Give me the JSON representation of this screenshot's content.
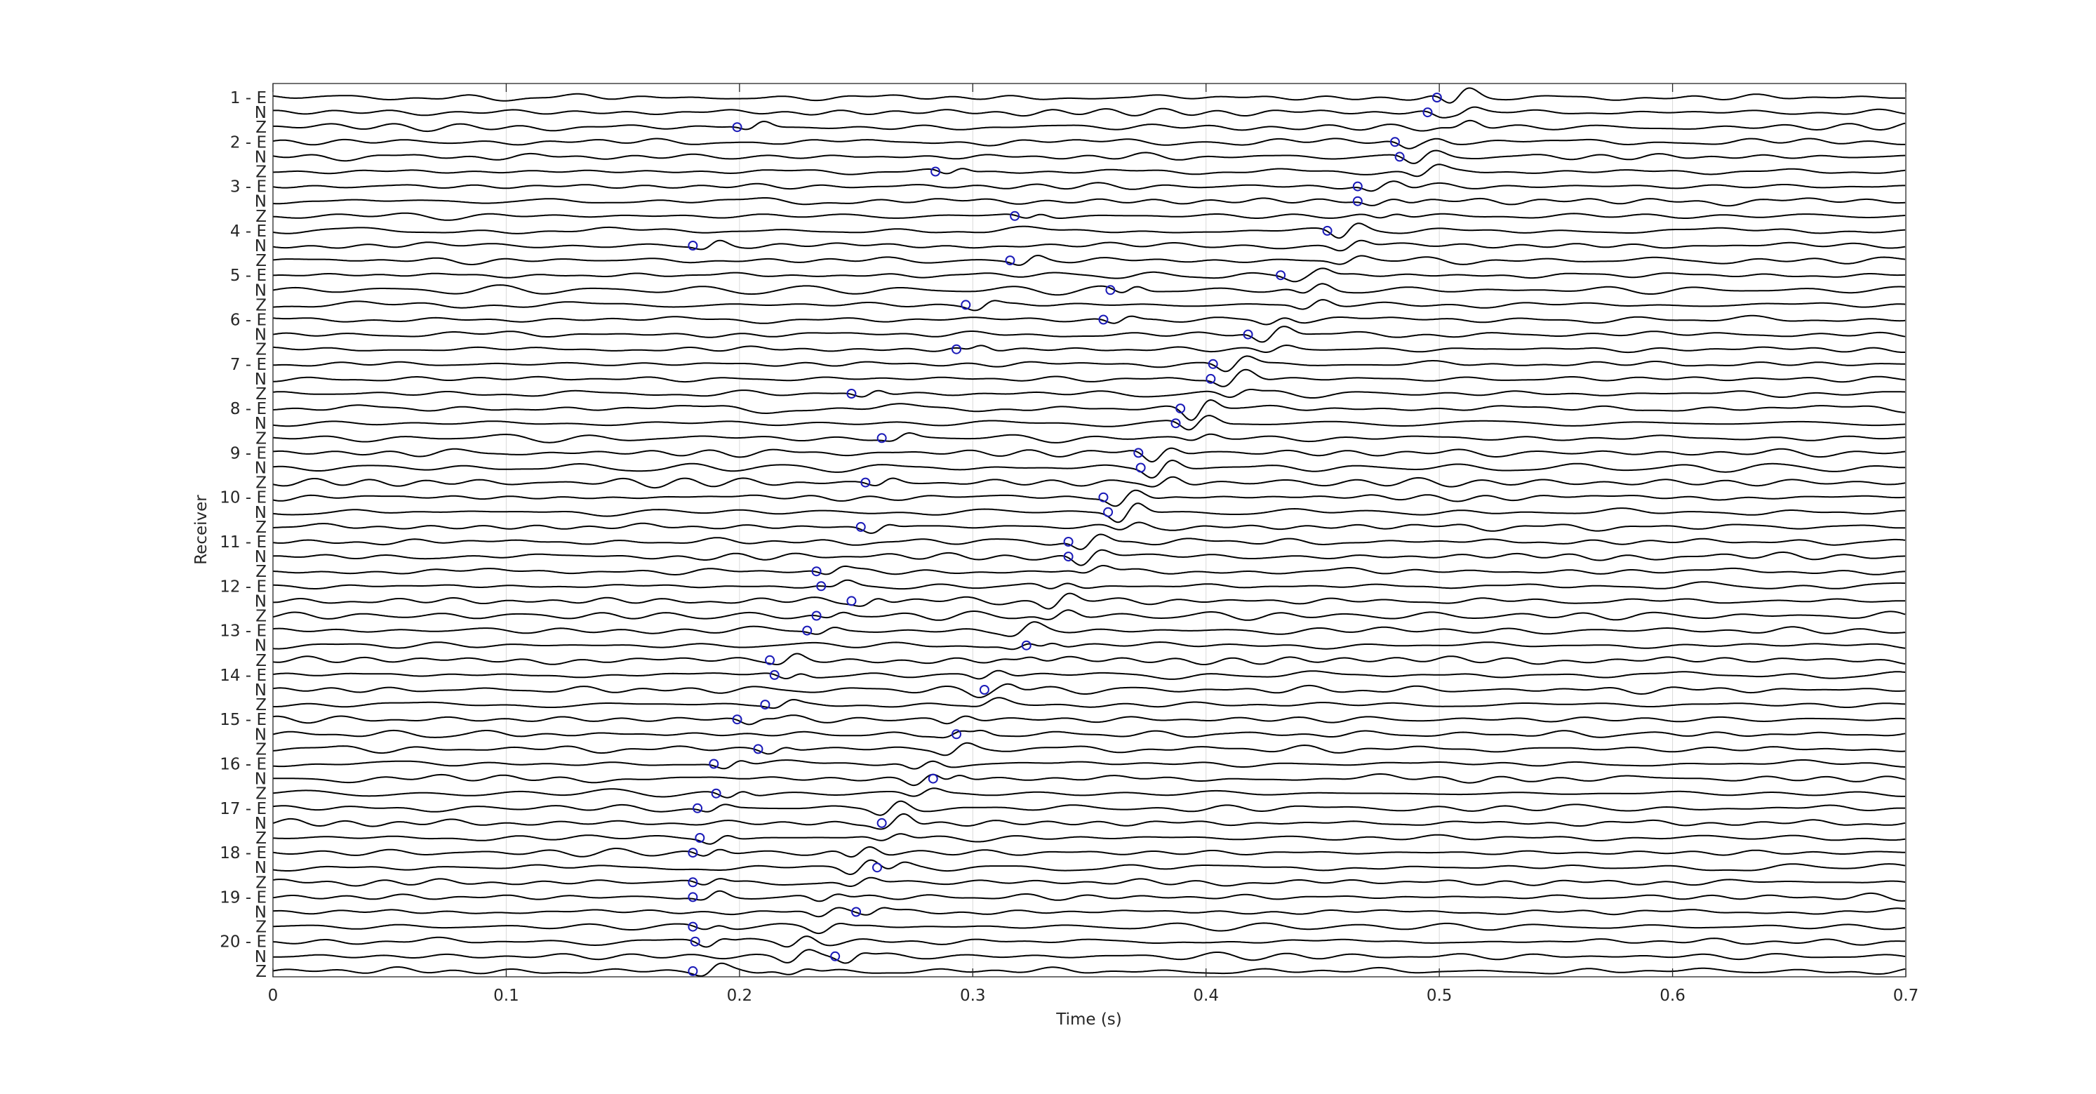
{
  "chart_data": {
    "type": "line",
    "title": "",
    "xlabel": "Time (s)",
    "ylabel": "Receiver",
    "xlim": [
      0,
      0.7
    ],
    "x_ticks": [
      0,
      0.1,
      0.2,
      0.3,
      0.4,
      0.5,
      0.6,
      0.7
    ],
    "x_tick_labels": [
      "0",
      "0.1",
      "0.2",
      "0.3",
      "0.4",
      "0.5",
      "0.6",
      "0.7"
    ],
    "grid": true,
    "components": [
      "E",
      "N",
      "Z"
    ],
    "trace_color": "#000000",
    "pick_color": "#1a1ab8",
    "receivers": [
      {
        "label": "1 - E",
        "picks": {
          "E": 0.499,
          "N": 0.495,
          "Z": 0.199
        },
        "arrival": 0.51
      },
      {
        "label": "2 - E",
        "picks": {
          "E": 0.481,
          "N": 0.483,
          "Z": 0.284
        },
        "arrival": 0.495
      },
      {
        "label": "3 - E",
        "picks": {
          "E": 0.465,
          "N": 0.465,
          "Z": 0.318
        },
        "arrival": 0.478
      },
      {
        "label": "4 - E",
        "picks": {
          "E": 0.452,
          "N": 0.18,
          "Z": 0.316
        },
        "arrival": 0.462
      },
      {
        "label": "5 - E",
        "picks": {
          "E": 0.432,
          "N": 0.359,
          "Z": 0.297
        },
        "arrival": 0.446
      },
      {
        "label": "6 - E",
        "picks": {
          "E": 0.356,
          "N": 0.418,
          "Z": 0.293
        },
        "arrival": 0.43
      },
      {
        "label": "7 - E",
        "picks": {
          "E": 0.403,
          "N": 0.402,
          "Z": 0.248
        },
        "arrival": 0.414
      },
      {
        "label": "8 - E",
        "picks": {
          "E": 0.389,
          "N": 0.387,
          "Z": 0.261
        },
        "arrival": 0.398
      },
      {
        "label": "9 - E",
        "picks": {
          "E": 0.371,
          "N": 0.372,
          "Z": 0.254
        },
        "arrival": 0.382
      },
      {
        "label": "10 - E",
        "picks": {
          "E": 0.356,
          "N": 0.358,
          "Z": 0.252
        },
        "arrival": 0.367
      },
      {
        "label": "11 - E",
        "picks": {
          "E": 0.341,
          "N": 0.341,
          "Z": 0.233
        },
        "arrival": 0.352
      },
      {
        "label": "12 - E",
        "picks": {
          "E": 0.235,
          "N": 0.248,
          "Z": 0.233
        },
        "arrival": 0.337
      },
      {
        "label": "13 - E",
        "picks": {
          "E": 0.229,
          "N": 0.323,
          "Z": 0.213
        },
        "arrival": 0.322
      },
      {
        "label": "14 - E",
        "picks": {
          "E": 0.215,
          "N": 0.305,
          "Z": 0.211
        },
        "arrival": 0.307
      },
      {
        "label": "15 - E",
        "picks": {
          "E": 0.199,
          "N": 0.293,
          "Z": 0.208
        },
        "arrival": 0.293
      },
      {
        "label": "16 - E",
        "picks": {
          "E": 0.189,
          "N": 0.283,
          "Z": 0.19
        },
        "arrival": 0.279
      },
      {
        "label": "17 - E",
        "picks": {
          "E": 0.182,
          "N": 0.261,
          "Z": 0.183
        },
        "arrival": 0.265
      },
      {
        "label": "18 - E",
        "picks": {
          "E": 0.18,
          "N": 0.259,
          "Z": 0.18
        },
        "arrival": 0.252
      },
      {
        "label": "19 - E",
        "picks": {
          "E": 0.18,
          "N": 0.25,
          "Z": 0.18
        },
        "arrival": 0.238
      },
      {
        "label": "20 - E",
        "picks": {
          "E": 0.181,
          "N": 0.241,
          "Z": 0.18
        },
        "arrival": 0.225
      }
    ]
  }
}
